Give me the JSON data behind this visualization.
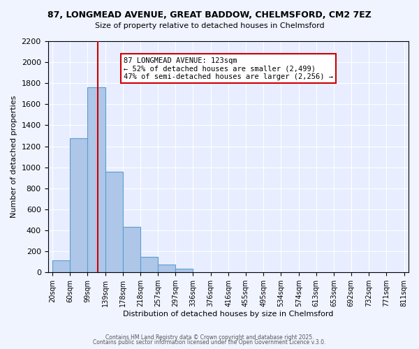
{
  "title_line1": "87, LONGMEAD AVENUE, GREAT BADDOW, CHELMSFORD, CM2 7EZ",
  "title_line2": "Size of property relative to detached houses in Chelmsford",
  "xlabel": "Distribution of detached houses by size in Chelmsford",
  "ylabel": "Number of detached properties",
  "bin_labels": [
    "20sqm",
    "60sqm",
    "99sqm",
    "139sqm",
    "178sqm",
    "218sqm",
    "257sqm",
    "297sqm",
    "336sqm",
    "376sqm",
    "416sqm",
    "455sqm",
    "495sqm",
    "534sqm",
    "574sqm",
    "613sqm",
    "653sqm",
    "692sqm",
    "732sqm",
    "771sqm",
    "811sqm"
  ],
  "bar_heights": [
    115,
    1280,
    1760,
    960,
    430,
    150,
    75,
    35,
    0,
    0,
    0,
    0,
    0,
    0,
    0,
    0,
    0,
    0,
    0,
    0
  ],
  "bar_color": "#aec6e8",
  "bar_edge_color": "#5a9fd4",
  "vline_x": 123,
  "vline_color": "#cc0000",
  "annotation_text": "87 LONGMEAD AVENUE: 123sqm\n← 52% of detached houses are smaller (2,499)\n47% of semi-detached houses are larger (2,256) →",
  "annotation_box_color": "#cc0000",
  "ylim": [
    0,
    2200
  ],
  "yticks": [
    0,
    200,
    400,
    600,
    800,
    1000,
    1200,
    1400,
    1600,
    1800,
    2000,
    2200
  ],
  "footer_line1": "Contains HM Land Registry data © Crown copyright and database right 2025.",
  "footer_line2": "Contains public sector information licensed under the Open Government Licence v.3.0.",
  "bg_color": "#f0f4ff",
  "plot_bg_color": "#e8eeff"
}
